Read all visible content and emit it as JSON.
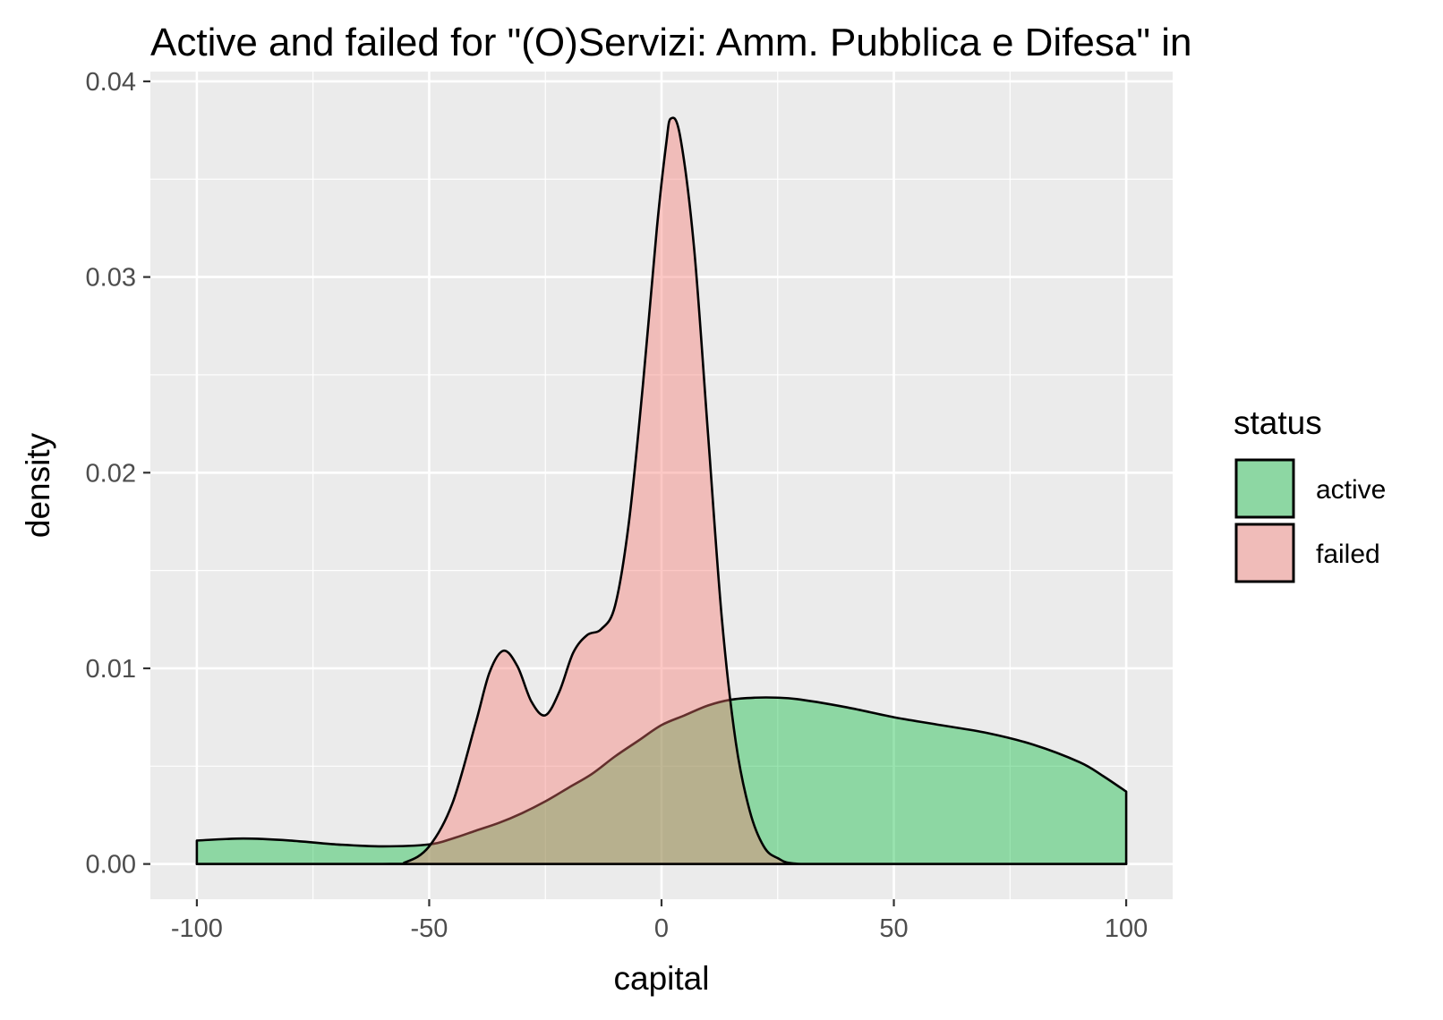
{
  "chart_data": {
    "type": "area",
    "subtype": "density",
    "title": "Active and failed for \"(O)Servizi: Amm. Pubblica e Difesa\" in",
    "xlabel": "capital",
    "ylabel": "density",
    "xlim": [
      -110,
      110
    ],
    "ylim": [
      -0.0018,
      0.0405
    ],
    "x_ticks": [
      -100,
      -50,
      0,
      50,
      100
    ],
    "x_tick_labels": [
      "-100",
      "-50",
      "0",
      "50",
      "100"
    ],
    "y_ticks": [
      0,
      0.01,
      0.02,
      0.03,
      0.04
    ],
    "y_tick_labels": [
      "0.00",
      "0.01",
      "0.02",
      "0.03",
      "0.04"
    ],
    "grid": true,
    "legend": {
      "title": "status",
      "position": "right"
    },
    "series": [
      {
        "name": "active",
        "color": "#00BA38",
        "fill_alpha": 0.4,
        "points": [
          [
            -100,
            0.0012
          ],
          [
            -90,
            0.0013
          ],
          [
            -80,
            0.0012
          ],
          [
            -70,
            0.001
          ],
          [
            -60,
            0.0009
          ],
          [
            -50,
            0.001
          ],
          [
            -45,
            0.0013
          ],
          [
            -40,
            0.0017
          ],
          [
            -35,
            0.0021
          ],
          [
            -30,
            0.0026
          ],
          [
            -25,
            0.0032
          ],
          [
            -20,
            0.0039
          ],
          [
            -15,
            0.0046
          ],
          [
            -10,
            0.0055
          ],
          [
            -5,
            0.0063
          ],
          [
            0,
            0.0071
          ],
          [
            5,
            0.0076
          ],
          [
            10,
            0.0081
          ],
          [
            15,
            0.0084
          ],
          [
            20,
            0.0085
          ],
          [
            25,
            0.0085
          ],
          [
            30,
            0.0084
          ],
          [
            40,
            0.008
          ],
          [
            50,
            0.0075
          ],
          [
            60,
            0.0071
          ],
          [
            70,
            0.0067
          ],
          [
            80,
            0.0061
          ],
          [
            90,
            0.0052
          ],
          [
            95,
            0.0045
          ],
          [
            100,
            0.0037
          ]
        ]
      },
      {
        "name": "failed",
        "color": "#F8766D",
        "fill_alpha": 0.4,
        "points": [
          [
            -100,
            0
          ],
          [
            -60,
            0
          ],
          [
            -55,
            0.0001
          ],
          [
            -50,
            0.0009
          ],
          [
            -45,
            0.0031
          ],
          [
            -40,
            0.0072
          ],
          [
            -37,
            0.0098
          ],
          [
            -34,
            0.0109
          ],
          [
            -31,
            0.0101
          ],
          [
            -28,
            0.0083
          ],
          [
            -25,
            0.0076
          ],
          [
            -22,
            0.0088
          ],
          [
            -19,
            0.0108
          ],
          [
            -16,
            0.0117
          ],
          [
            -13,
            0.012
          ],
          [
            -10,
            0.0132
          ],
          [
            -7,
            0.0175
          ],
          [
            -4,
            0.0245
          ],
          [
            -1,
            0.0325
          ],
          [
            1,
            0.0368
          ],
          [
            2,
            0.0381
          ],
          [
            4,
            0.0372
          ],
          [
            7,
            0.0315
          ],
          [
            10,
            0.022
          ],
          [
            13,
            0.0125
          ],
          [
            16,
            0.0062
          ],
          [
            19,
            0.0027
          ],
          [
            22,
            0.0009
          ],
          [
            25,
            0.0003
          ],
          [
            30,
            0
          ],
          [
            50,
            0
          ],
          [
            100,
            0
          ]
        ]
      }
    ]
  }
}
